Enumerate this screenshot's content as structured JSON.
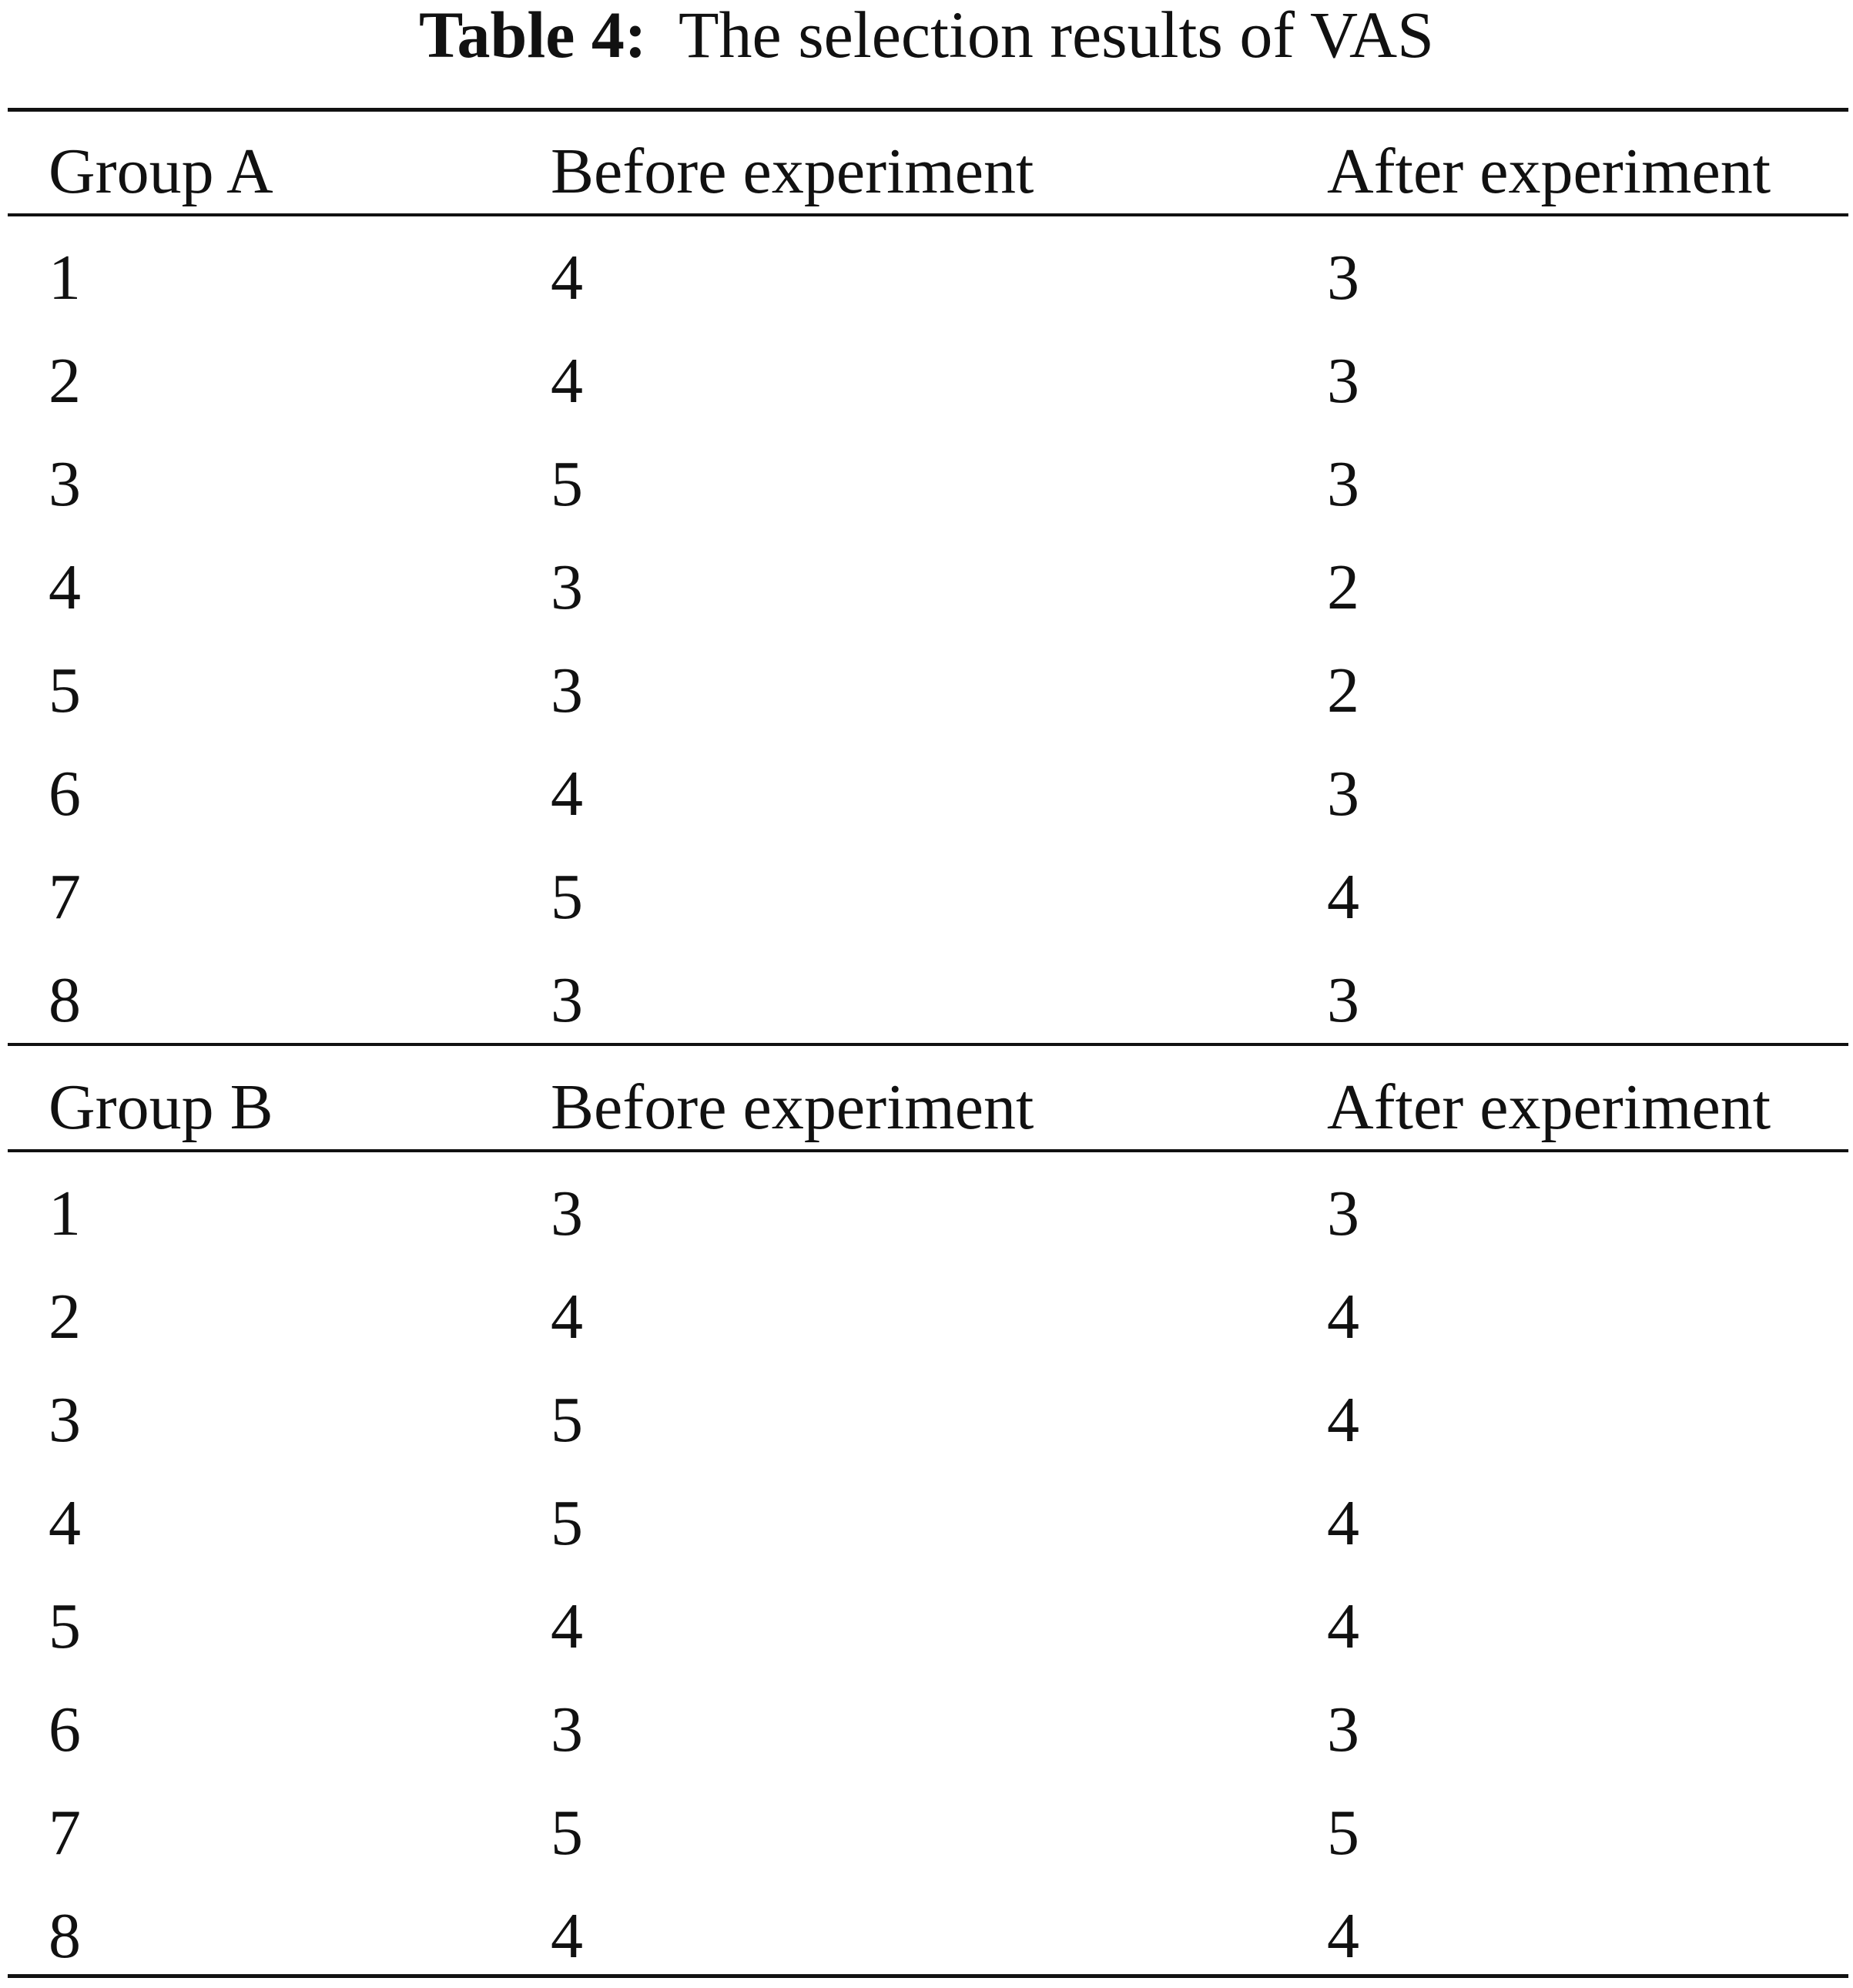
{
  "table": {
    "caption_label": "Table 4:",
    "caption_text": "The selection results of VAS",
    "groups": [
      {
        "headers": [
          "Group A",
          "Before experiment",
          "After experiment"
        ],
        "rows": [
          [
            "1",
            "4",
            "3"
          ],
          [
            "2",
            "4",
            "3"
          ],
          [
            "3",
            "5",
            "3"
          ],
          [
            "4",
            "3",
            "2"
          ],
          [
            "5",
            "3",
            "2"
          ],
          [
            "6",
            "4",
            "3"
          ],
          [
            "7",
            "5",
            "4"
          ],
          [
            "8",
            "3",
            "3"
          ]
        ]
      },
      {
        "headers": [
          "Group B",
          "Before experiment",
          "After experiment"
        ],
        "rows": [
          [
            "1",
            "3",
            "3"
          ],
          [
            "2",
            "4",
            "4"
          ],
          [
            "3",
            "5",
            "4"
          ],
          [
            "4",
            "5",
            "4"
          ],
          [
            "5",
            "4",
            "4"
          ],
          [
            "6",
            "3",
            "3"
          ],
          [
            "7",
            "5",
            "5"
          ],
          [
            "8",
            "4",
            "4"
          ]
        ]
      }
    ]
  }
}
